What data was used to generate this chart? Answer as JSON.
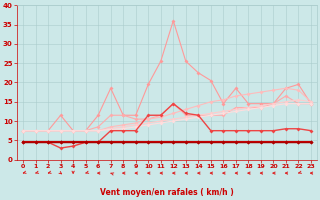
{
  "x": [
    0,
    1,
    2,
    3,
    4,
    5,
    6,
    7,
    8,
    9,
    10,
    11,
    12,
    13,
    14,
    15,
    16,
    17,
    18,
    19,
    20,
    21,
    22,
    23
  ],
  "series": [
    {
      "name": "max_gust_light",
      "color": "#ff9999",
      "values": [
        7.5,
        7.5,
        7.5,
        11.5,
        7.5,
        7.5,
        11.5,
        18.5,
        11.5,
        11.5,
        19.5,
        25.5,
        36.0,
        25.5,
        22.5,
        20.5,
        14.5,
        18.5,
        14.5,
        14.5,
        14.5,
        18.5,
        19.5,
        14.5
      ],
      "linewidth": 0.8
    },
    {
      "name": "mean_gust",
      "color": "#ffaaaa",
      "values": [
        7.5,
        7.5,
        7.5,
        7.5,
        7.5,
        7.5,
        8.5,
        11.5,
        11.5,
        10.5,
        10.5,
        11.5,
        14.5,
        11.5,
        11.5,
        11.5,
        11.5,
        13.5,
        13.5,
        13.5,
        14.5,
        16.5,
        14.5,
        14.5
      ],
      "linewidth": 0.8
    },
    {
      "name": "trend_upper",
      "color": "#ffbbbb",
      "values": [
        7.5,
        7.5,
        7.5,
        7.5,
        7.5,
        7.5,
        7.5,
        8.5,
        9.0,
        9.5,
        10.5,
        11.0,
        12.0,
        13.0,
        14.0,
        15.0,
        15.5,
        16.5,
        17.0,
        17.5,
        18.0,
        18.5,
        18.0,
        15.0
      ],
      "linewidth": 0.8
    },
    {
      "name": "trend_mid",
      "color": "#ffcccc",
      "values": [
        7.5,
        7.5,
        7.5,
        7.5,
        7.5,
        7.5,
        7.5,
        8.0,
        8.5,
        9.0,
        9.5,
        10.0,
        10.5,
        11.0,
        11.5,
        12.0,
        12.5,
        13.0,
        13.5,
        14.0,
        14.5,
        15.0,
        15.5,
        15.0
      ],
      "linewidth": 0.8
    },
    {
      "name": "trend_low",
      "color": "#ffdddd",
      "values": [
        7.5,
        7.5,
        7.5,
        7.5,
        7.5,
        7.5,
        7.5,
        7.8,
        8.0,
        8.5,
        9.0,
        9.5,
        10.0,
        10.5,
        11.0,
        11.5,
        12.0,
        12.5,
        13.0,
        13.5,
        14.0,
        14.5,
        14.5,
        14.5
      ],
      "linewidth": 0.8
    },
    {
      "name": "medium_red",
      "color": "#ee4444",
      "values": [
        4.5,
        4.5,
        4.5,
        3.0,
        3.5,
        4.5,
        4.5,
        7.5,
        7.5,
        7.5,
        11.5,
        11.5,
        14.5,
        12.0,
        11.5,
        7.5,
        7.5,
        7.5,
        7.5,
        7.5,
        7.5,
        8.0,
        8.0,
        7.5
      ],
      "linewidth": 1.0
    },
    {
      "name": "base_dark",
      "color": "#cc0000",
      "values": [
        4.5,
        4.5,
        4.5,
        4.5,
        4.5,
        4.5,
        4.5,
        4.5,
        4.5,
        4.5,
        4.5,
        4.5,
        4.5,
        4.5,
        4.5,
        4.5,
        4.5,
        4.5,
        4.5,
        4.5,
        4.5,
        4.5,
        4.5,
        4.5
      ],
      "linewidth": 1.5
    },
    {
      "name": "base_dark2",
      "color": "#aa0000",
      "values": [
        4.5,
        4.5,
        4.5,
        4.5,
        4.5,
        4.5,
        4.5,
        4.5,
        4.5,
        4.5,
        4.5,
        4.5,
        4.5,
        4.5,
        4.5,
        4.5,
        4.5,
        4.5,
        4.5,
        4.5,
        4.5,
        4.5,
        4.5,
        4.5
      ],
      "linewidth": 1.0
    }
  ],
  "arrows": {
    "x": [
      0,
      1,
      2,
      3,
      4,
      5,
      6,
      7,
      8,
      9,
      10,
      11,
      12,
      13,
      14,
      15,
      16,
      17,
      18,
      19,
      20,
      21,
      22,
      23
    ],
    "angles_deg": [
      225,
      225,
      225,
      157,
      180,
      225,
      270,
      315,
      270,
      270,
      270,
      270,
      270,
      270,
      270,
      270,
      270,
      270,
      270,
      270,
      270,
      270,
      225,
      270
    ],
    "color": "#dd2222"
  },
  "ylim": [
    0,
    40
  ],
  "xlim": [
    -0.5,
    23.5
  ],
  "yticks": [
    0,
    5,
    10,
    15,
    20,
    25,
    30,
    35,
    40
  ],
  "xticks": [
    0,
    1,
    2,
    3,
    4,
    5,
    6,
    7,
    8,
    9,
    10,
    11,
    12,
    13,
    14,
    15,
    16,
    17,
    18,
    19,
    20,
    21,
    22,
    23
  ],
  "xlabel": "Vent moyen/en rafales ( km/h )",
  "background_color": "#cce8e8",
  "grid_color": "#aacccc",
  "tick_color": "#cc0000",
  "label_color": "#cc0000",
  "marker": "D",
  "markersize": 2.0
}
